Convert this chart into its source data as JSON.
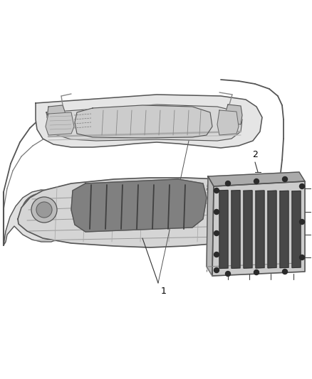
{
  "background_color": "#ffffff",
  "fig_width": 4.38,
  "fig_height": 5.33,
  "dpi": 100,
  "label_1": "1",
  "label_2": "2",
  "line_color": "#555555",
  "label_fontsize": 9,
  "line_width": 0.8
}
